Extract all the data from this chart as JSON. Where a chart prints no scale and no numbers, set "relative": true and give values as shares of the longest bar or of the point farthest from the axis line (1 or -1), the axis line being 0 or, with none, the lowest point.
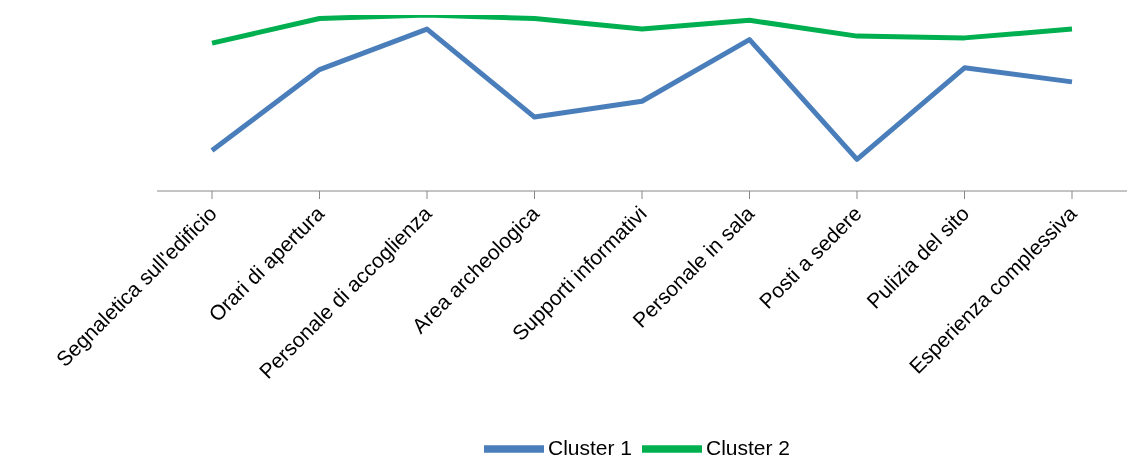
{
  "chart_data": {
    "type": "line",
    "relative": true,
    "categories": [
      "Segnaletica sull'edificio",
      "Orari di apertura",
      "Personale di accoglienza",
      "Area archeologica",
      "Supporti informativi",
      "Personale in sala",
      "Posti a sedere",
      "Pulizia del sito",
      "Esperienza complessiva"
    ],
    "series": [
      {
        "name": "Cluster 1",
        "color": "#4a7ebb",
        "values": [
          0.23,
          0.69,
          0.92,
          0.42,
          0.51,
          0.86,
          0.18,
          0.7,
          0.62
        ]
      },
      {
        "name": "Cluster 2",
        "color": "#00b050",
        "values": [
          0.84,
          0.98,
          1.0,
          0.98,
          0.92,
          0.97,
          0.88,
          0.87,
          0.92
        ]
      }
    ],
    "legend": "bottom",
    "marker": "none",
    "line_style": "solid",
    "grid": false
  }
}
